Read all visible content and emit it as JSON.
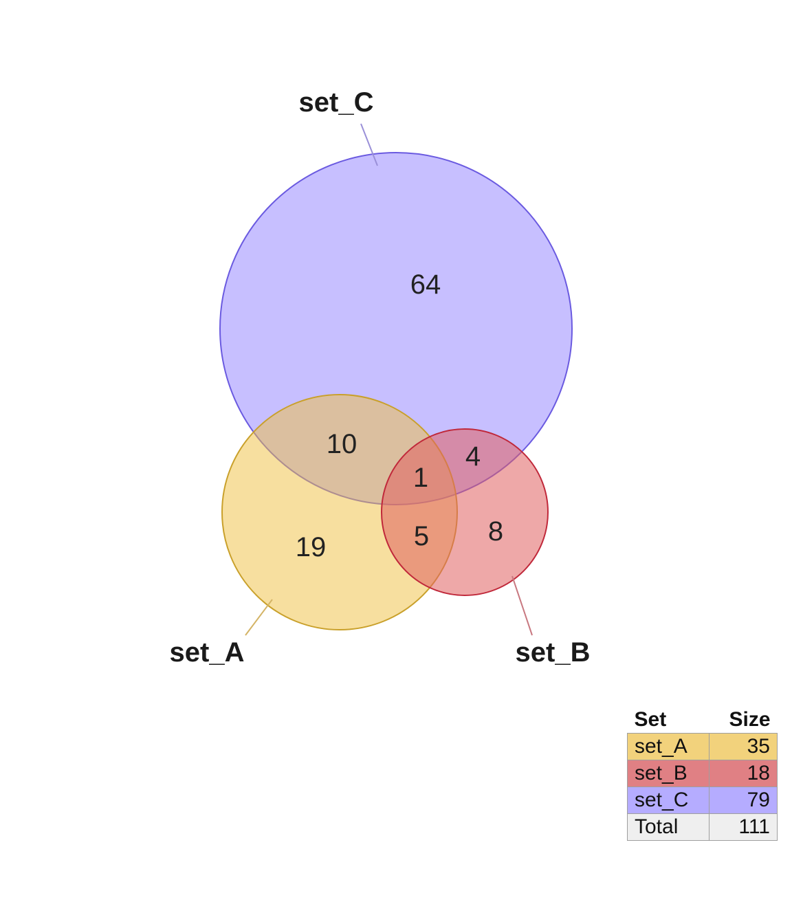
{
  "diagram": {
    "sets": [
      {
        "name": "set_A",
        "size": 35,
        "fill": "#f0c040",
        "stroke": "#c9a02a",
        "cell": "#f2d27c"
      },
      {
        "name": "set_B",
        "size": 18,
        "fill": "#e06060",
        "stroke": "#c0283a",
        "cell": "#e08084"
      },
      {
        "name": "set_C",
        "size": 79,
        "fill": "#9080ff",
        "stroke": "#6a5ae0",
        "cell": "#b5acff"
      }
    ],
    "regions": {
      "a_only": "19",
      "b_only": "8",
      "c_only": "64",
      "ac": "10",
      "bc": "4",
      "ab": "5",
      "abc": "1"
    }
  },
  "legend": {
    "header_set": "Set",
    "header_size": "Size",
    "rows": [
      {
        "set": "set_A",
        "size": "35",
        "color": "#f2d27c"
      },
      {
        "set": "set_B",
        "size": "18",
        "color": "#e08084"
      },
      {
        "set": "set_C",
        "size": "79",
        "color": "#b5acff"
      },
      {
        "set": "Total",
        "size": "111",
        "color": "#efefef"
      }
    ]
  }
}
